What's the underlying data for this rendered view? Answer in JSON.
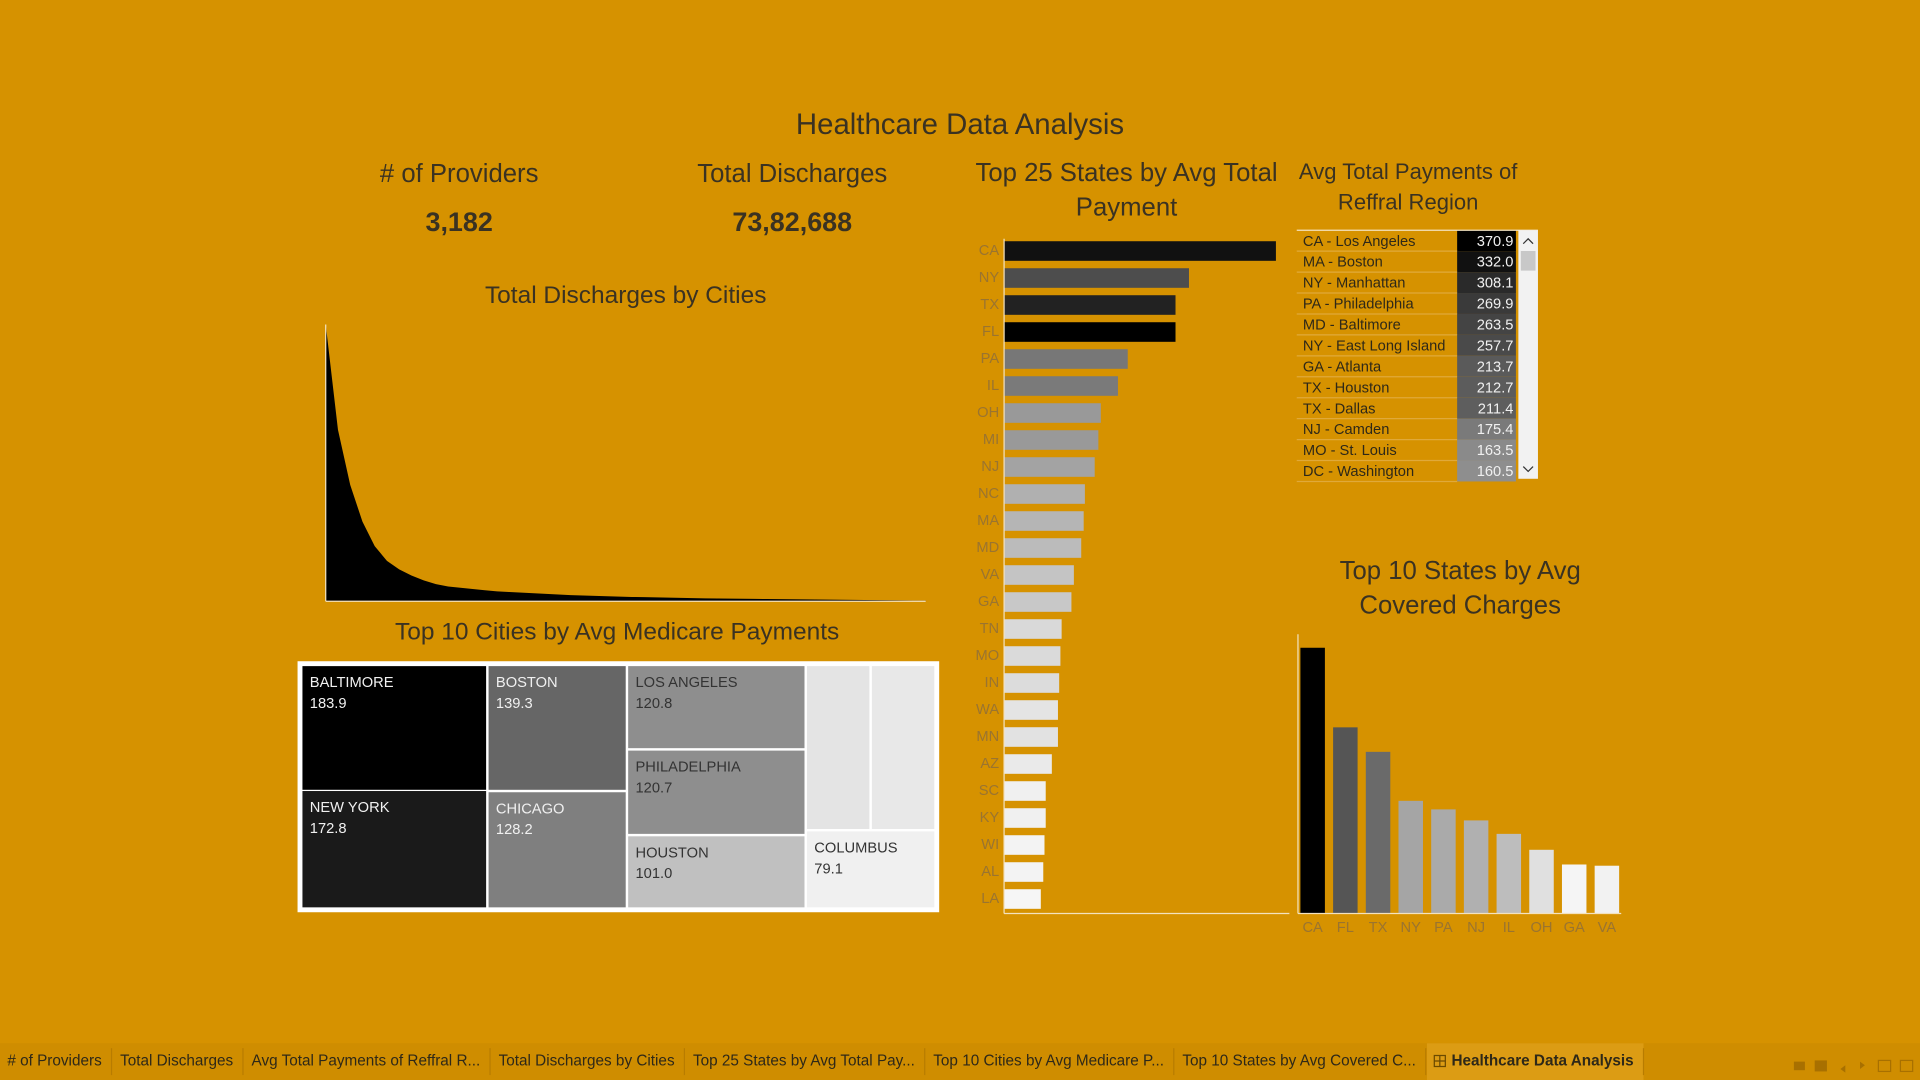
{
  "title": "Healthcare Data Analysis",
  "kpis": [
    {
      "label": "# of Providers",
      "value": "3,182"
    },
    {
      "label": "Total Discharges",
      "value": "73,82,688"
    }
  ],
  "chart_data": [
    {
      "type": "area",
      "title": "Total Discharges by Cities",
      "color": "#000000",
      "values": [
        226,
        140,
        95,
        65,
        45,
        33,
        26,
        21,
        17,
        14,
        12,
        11,
        10,
        9,
        8,
        7.5,
        7,
        6.5,
        6,
        5.5,
        5,
        4.7,
        4.4,
        4.1,
        3.8,
        3.5,
        3.3,
        3.1,
        2.9,
        2.7,
        2.5,
        2.3,
        2.2,
        2.1,
        2,
        1.9,
        1.8,
        1.7,
        1.6,
        1.5,
        1.4,
        1.3,
        1.2,
        1.1,
        1,
        0.9,
        0.8,
        0.7,
        0.6,
        0.5
      ]
    },
    {
      "type": "treemap",
      "title": "Top 10 Cities by Avg Medicare Payments",
      "categories": [
        "BALTIMORE",
        "NEW YORK",
        "BOSTON",
        "CHICAGO",
        "LOS ANGELES",
        "PHILADELPHIA",
        "HOUSTON",
        null,
        null,
        "COLUMBUS"
      ],
      "values": [
        183.9,
        172.8,
        139.3,
        128.2,
        120.8,
        120.7,
        101,
        81,
        80,
        79.1
      ],
      "value_labels": [
        "183.9",
        "172.8",
        "139.3",
        "128.2",
        "120.8",
        "120.7",
        "101.0",
        null,
        null,
        "79.1"
      ],
      "colors": [
        "#000000",
        "#1a1a1a",
        "#666666",
        "#7f7f7f",
        "#8e8e8e",
        "#8e8e8e",
        "#c0c0c0",
        "#e4e4e4",
        "#e8e8e8",
        "#f0f0f0"
      ]
    },
    {
      "type": "hbar",
      "title": "Top 25 States by Avg Total Payment",
      "categories": [
        "CA",
        "NY",
        "TX",
        "FL",
        "PA",
        "IL",
        "OH",
        "MI",
        "NJ",
        "NC",
        "MA",
        "MD",
        "VA",
        "GA",
        "TN",
        "MO",
        "IN",
        "WA",
        "MN",
        "AZ",
        "SC",
        "KY",
        "WI",
        "AL",
        "LA"
      ],
      "values": [
        222,
        151,
        140,
        140,
        101,
        93,
        79,
        77,
        74,
        66,
        65,
        63,
        57,
        55,
        47,
        46,
        45,
        44,
        44,
        39,
        34,
        34,
        33,
        32,
        30
      ],
      "colors": [
        "#111111",
        "#4d4d4d",
        "#222222",
        "#000000",
        "#777777",
        "#7a7a7a",
        "#999999",
        "#999999",
        "#a3a3a3",
        "#b0b0b0",
        "#b5b5b5",
        "#bbbbbb",
        "#c4c4c4",
        "#c8c8c8",
        "#d9d9d9",
        "#dadada",
        "#dcdcdc",
        "#e4e4e4",
        "#e2e2e2",
        "#eaeaea",
        "#f0f0f0",
        "#f0f0f0",
        "#f3f3f3",
        "#f3f3f3",
        "#f6f6f6"
      ]
    },
    {
      "type": "highlight-table",
      "title": "Avg Total Payments of Reffral Region",
      "categories": [
        "CA - Los Angeles",
        "MA - Boston",
        "NY - Manhattan",
        "PA - Philadelphia",
        "MD - Baltimore",
        "NY - East Long Island",
        "GA - Atlanta",
        "TX - Houston",
        "TX - Dallas",
        "NJ - Camden",
        "MO - St. Louis",
        "DC - Washington"
      ],
      "values": [
        370.9,
        332,
        308.1,
        269.9,
        263.5,
        257.7,
        213.7,
        212.7,
        211.4,
        175.4,
        163.5,
        160.5
      ],
      "value_labels": [
        "370.9",
        "332.0",
        "308.1",
        "269.9",
        "263.5",
        "257.7",
        "213.7",
        "212.7",
        "211.4",
        "175.4",
        "163.5",
        "160.5"
      ],
      "colors": [
        "#000000",
        "#111111",
        "#2a2a2a",
        "#3a3a3a",
        "#444444",
        "#4a4a4a",
        "#5a5a5a",
        "#5c5c5c",
        "#5e5e5e",
        "#7a7a7a",
        "#8a8a8a",
        "#8e8e8e"
      ]
    },
    {
      "type": "bar",
      "title": "Top 10 States by Avg Covered Charges",
      "categories": [
        "CA",
        "FL",
        "TX",
        "NY",
        "PA",
        "NJ",
        "IL",
        "OH",
        "GA",
        "VA"
      ],
      "values": [
        217,
        152,
        132,
        92,
        85,
        76,
        65,
        52,
        40,
        39
      ],
      "colors": [
        "#000000",
        "#555555",
        "#6a6a6a",
        "#a5a5a5",
        "#aaaaaa",
        "#b0b0b0",
        "#bdbdbd",
        "#e0e0e0",
        "#f5f5f5",
        "#f2f2f2"
      ]
    }
  ],
  "tabs": [
    "# of Providers",
    "Total Discharges",
    "Avg Total Payments of Reffral R...",
    "Total Discharges by Cities",
    "Top 25 States by Avg Total Pay...",
    "Top 10 Cities by Avg Medicare P...",
    "Top 10 States by Avg Covered C...",
    "Healthcare Data Analysis"
  ],
  "active_tab": 7
}
